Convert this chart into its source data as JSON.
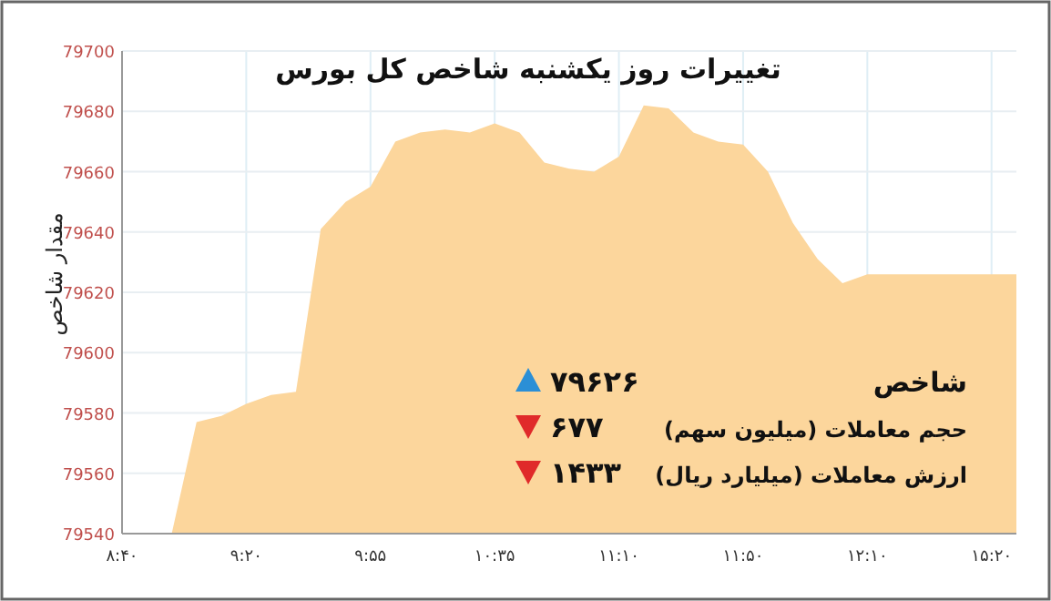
{
  "chart_data": {
    "type": "area",
    "title": "تغییرات روز یکشنبه شاخص کل بورس",
    "ylabel": "مقدار شاخص",
    "categories": [
      "۸:۴۰",
      null,
      null,
      null,
      null,
      "۹:۲۰",
      null,
      null,
      null,
      null,
      "۹:۵۵",
      null,
      null,
      null,
      null,
      "۱۰:۳۵",
      null,
      null,
      null,
      null,
      "۱۱:۱۰",
      null,
      null,
      null,
      null,
      "۱۱:۵۰",
      null,
      null,
      null,
      null,
      "۱۲:۱۰",
      null,
      null,
      null,
      null,
      "۱۵:۲۰",
      null
    ],
    "series": [
      {
        "color": "#fcd69c",
        "values": [
          79540,
          79540,
          79540,
          79577,
          79579,
          79583,
          79586,
          79587,
          79641,
          79650,
          79655,
          79670,
          79673,
          79674,
          79673,
          79676,
          79673,
          79663,
          79661,
          79660,
          79665,
          79682,
          79681,
          79673,
          79670,
          79669,
          79660,
          79643,
          79631,
          79623,
          79626,
          79626,
          79626,
          79626,
          79626,
          79626,
          79626
        ]
      }
    ],
    "ylim": [
      79540,
      79700
    ],
    "yticks": [
      79540,
      79560,
      79580,
      79600,
      79620,
      79640,
      79660,
      79680,
      79700
    ],
    "grid": true,
    "annotations": [
      "شاخص",
      "۷۹۶۲۶",
      "حجم معاملات (میلیون سهم)",
      "۶۷۷",
      "ارزش معاملات (میلیارد ریال)",
      "۱۴۳۳"
    ]
  }
}
